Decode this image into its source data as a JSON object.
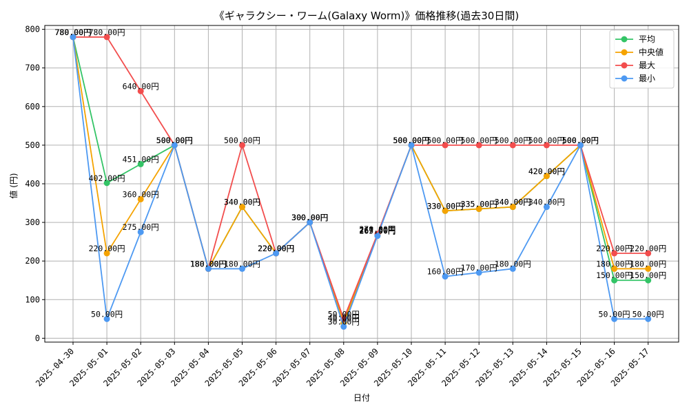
{
  "chart_data": {
    "type": "line",
    "title": "《ギャラクシー・ワーム(Galaxy Worm)》価格推移(過去30日間)",
    "xlabel": "日付",
    "ylabel": "値 (円)",
    "ylim": [
      -10,
      810
    ],
    "yticks": [
      0,
      100,
      200,
      300,
      400,
      500,
      600,
      700,
      800
    ],
    "grid": true,
    "legend_position": "top-right",
    "label_suffix": "円",
    "categories": [
      "2025-04-30",
      "2025-05-01",
      "2025-05-02",
      "2025-05-03",
      "2025-05-04",
      "2025-05-05",
      "2025-05-06",
      "2025-05-07",
      "2025-05-08",
      "2025-05-09",
      "2025-05-10",
      "2025-05-11",
      "2025-05-12",
      "2025-05-13",
      "2025-05-14",
      "2025-05-15",
      "2025-05-16",
      "2025-05-17"
    ],
    "series": [
      {
        "name": "平均",
        "color": "#33c466",
        "values": [
          780,
          402,
          451,
          500,
          180,
          340,
          220,
          300,
          40,
          267.5,
          500,
          330,
          335,
          340,
          420,
          500,
          150,
          150
        ]
      },
      {
        "name": "中央値",
        "color": "#f5a300",
        "values": [
          780,
          220,
          360,
          500,
          180,
          340,
          220,
          300,
          40,
          267.5,
          500,
          330,
          335,
          340,
          420,
          500,
          180,
          180
        ]
      },
      {
        "name": "最大",
        "color": "#f24d4d",
        "values": [
          780,
          780,
          640,
          500,
          180,
          500,
          220,
          300,
          50,
          270,
          500,
          500,
          500,
          500,
          500,
          500,
          220,
          220
        ]
      },
      {
        "name": "最小",
        "color": "#4d99f2",
        "values": [
          780,
          50,
          275,
          500,
          180,
          180,
          220,
          300,
          30,
          265,
          500,
          160,
          170,
          180,
          340,
          500,
          50,
          50
        ]
      }
    ]
  }
}
